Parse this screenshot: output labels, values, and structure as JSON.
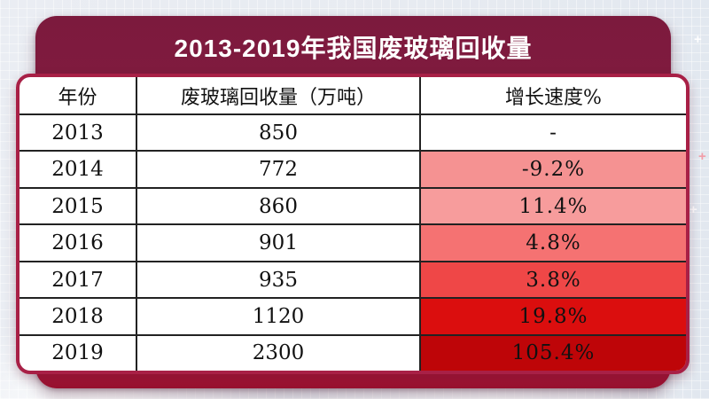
{
  "header": {
    "title": "2013-2019年我国废玻璃回收量"
  },
  "theme": {
    "banner_maroon_top": "#7C1A3D",
    "banner_crimson_bottom": "#B2173B",
    "card_border": "#A82046",
    "table_line": "#222222",
    "page_background": "#E7EBF1"
  },
  "decorations": {
    "plus_glyph": "+"
  },
  "table": {
    "columns": [
      "年份",
      "废玻璃回收量（万吨）",
      "增长速度%"
    ],
    "rows": [
      {
        "year": "2013",
        "volume": "850",
        "growth": "-",
        "growth_bg": "#FFFFFF"
      },
      {
        "year": "2014",
        "volume": "772",
        "growth": "-9.2%",
        "growth_bg": "#F59292"
      },
      {
        "year": "2015",
        "volume": "860",
        "growth": "11.4%",
        "growth_bg": "#F79C9C"
      },
      {
        "year": "2016",
        "volume": "901",
        "growth": "4.8%",
        "growth_bg": "#F57272"
      },
      {
        "year": "2017",
        "volume": "935",
        "growth": "3.8%",
        "growth_bg": "#EF4747"
      },
      {
        "year": "2018",
        "volume": "1120",
        "growth": "19.8%",
        "growth_bg": "#DB0E0E"
      },
      {
        "year": "2019",
        "volume": "2300",
        "growth": "105.4%",
        "growth_bg": "#BE0508"
      }
    ]
  },
  "chart_data": {
    "type": "table",
    "title": "2013-2019年我国废玻璃回收量",
    "columns": [
      "年份",
      "废玻璃回收量（万吨）",
      "增长速度%"
    ],
    "categories": [
      "2013",
      "2014",
      "2015",
      "2016",
      "2017",
      "2018",
      "2019"
    ],
    "series": [
      {
        "name": "废玻璃回收量（万吨）",
        "values": [
          850,
          772,
          860,
          901,
          935,
          1120,
          2300
        ]
      },
      {
        "name": "增长速度%",
        "values": [
          null,
          -9.2,
          11.4,
          4.8,
          3.8,
          19.8,
          105.4
        ]
      }
    ]
  }
}
